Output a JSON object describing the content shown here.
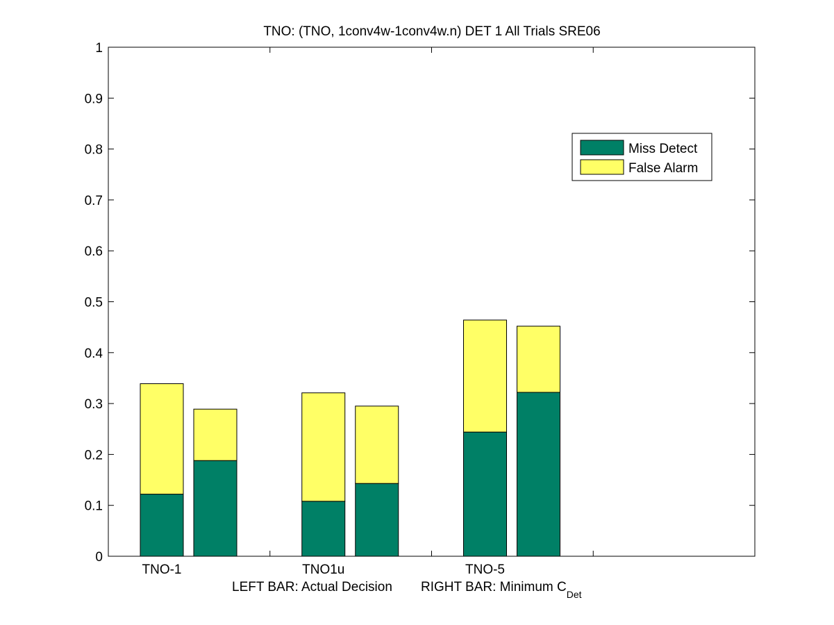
{
  "chart_data": {
    "type": "bar",
    "stacked": true,
    "title": "TNO: (TNO, 1conv4w-1conv4w.n) DET 1 All Trials SRE06",
    "xlabel": {
      "left": "LEFT BAR: Actual Decision",
      "right_prefix": "RIGHT BAR: Minimum C",
      "right_subscript": "Det"
    },
    "categories": [
      "TNO-1",
      "TNO1u",
      "TNO-5"
    ],
    "bar_pair_labels": [
      "Actual Decision",
      "Minimum C_Det"
    ],
    "ylim": [
      0,
      1
    ],
    "yticks": [
      "0",
      "0.1",
      "0.2",
      "0.3",
      "0.4",
      "0.5",
      "0.6",
      "0.7",
      "0.8",
      "0.9",
      "1"
    ],
    "grid": false,
    "legend_position": "top-right",
    "series": [
      {
        "name": "Miss Detect",
        "color": "#008066",
        "values": [
          [
            0.122,
            0.188
          ],
          [
            0.108,
            0.143
          ],
          [
            0.244,
            0.322
          ]
        ]
      },
      {
        "name": "False Alarm",
        "color": "#ffff66",
        "values": [
          [
            0.217,
            0.101
          ],
          [
            0.213,
            0.152
          ],
          [
            0.22,
            0.13
          ]
        ]
      }
    ]
  }
}
